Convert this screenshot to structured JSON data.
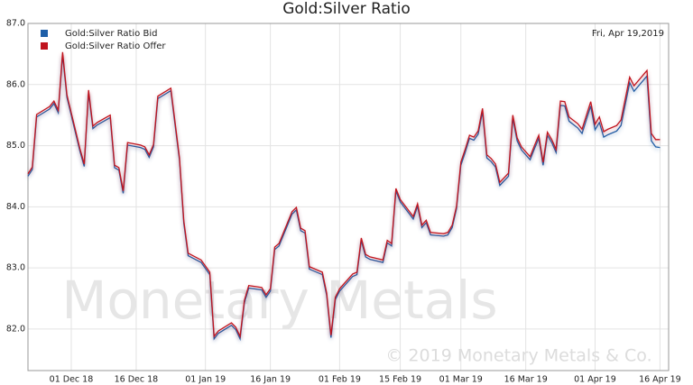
{
  "chart_data": {
    "type": "line",
    "title": "Gold:Silver Ratio",
    "date_label": "Fri, Apr 19,2019",
    "watermark": "Monetary Metals",
    "copyright": "© 2019 Monetary Metals & Co.",
    "x": [
      "2018-11-21",
      "2018-11-22",
      "2018-11-23",
      "2018-11-26",
      "2018-11-27",
      "2018-11-28",
      "2018-11-29",
      "2018-11-30",
      "2018-12-03",
      "2018-12-04",
      "2018-12-05",
      "2018-12-06",
      "2018-12-07",
      "2018-12-10",
      "2018-12-11",
      "2018-12-12",
      "2018-12-13",
      "2018-12-14",
      "2018-12-17",
      "2018-12-18",
      "2018-12-19",
      "2018-12-20",
      "2018-12-21",
      "2018-12-24",
      "2018-12-26",
      "2018-12-27",
      "2018-12-28",
      "2018-12-31",
      "2019-01-02",
      "2019-01-03",
      "2019-01-04",
      "2019-01-07",
      "2019-01-08",
      "2019-01-09",
      "2019-01-10",
      "2019-01-11",
      "2019-01-14",
      "2019-01-15",
      "2019-01-16",
      "2019-01-17",
      "2019-01-18",
      "2019-01-21",
      "2019-01-22",
      "2019-01-23",
      "2019-01-24",
      "2019-01-25",
      "2019-01-28",
      "2019-01-29",
      "2019-01-30",
      "2019-01-31",
      "2019-02-01",
      "2019-02-04",
      "2019-02-05",
      "2019-02-06",
      "2019-02-07",
      "2019-02-08",
      "2019-02-11",
      "2019-02-12",
      "2019-02-13",
      "2019-02-14",
      "2019-02-15",
      "2019-02-18",
      "2019-02-19",
      "2019-02-20",
      "2019-02-21",
      "2019-02-22",
      "2019-02-25",
      "2019-02-26",
      "2019-02-27",
      "2019-02-28",
      "2019-03-01",
      "2019-03-02",
      "2019-03-03",
      "2019-03-04",
      "2019-03-05",
      "2019-03-06",
      "2019-03-07",
      "2019-03-08",
      "2019-03-09",
      "2019-03-10",
      "2019-03-12",
      "2019-03-13",
      "2019-03-14",
      "2019-03-15",
      "2019-03-17",
      "2019-03-18",
      "2019-03-19",
      "2019-03-20",
      "2019-03-21",
      "2019-03-22",
      "2019-03-23",
      "2019-03-24",
      "2019-03-25",
      "2019-03-26",
      "2019-03-28",
      "2019-03-29",
      "2019-03-31",
      "2019-04-01",
      "2019-04-02",
      "2019-04-03",
      "2019-04-04",
      "2019-04-06",
      "2019-04-07",
      "2019-04-09",
      "2019-04-10",
      "2019-04-13",
      "2019-04-14",
      "2019-04-15",
      "2019-04-16"
    ],
    "series": [
      {
        "name": "Gold:Silver Ratio Bid",
        "color": "#1f5fa8",
        "values": [
          84.5,
          84.61,
          85.47,
          85.6,
          85.69,
          85.54,
          86.49,
          85.79,
          84.91,
          84.66,
          85.87,
          85.28,
          85.34,
          85.46,
          84.64,
          84.6,
          84.22,
          85.01,
          84.97,
          84.94,
          84.81,
          84.98,
          85.77,
          85.9,
          84.76,
          83.73,
          83.2,
          83.09,
          82.89,
          81.84,
          81.93,
          82.06,
          81.99,
          81.84,
          82.43,
          82.67,
          82.64,
          82.52,
          82.62,
          83.3,
          83.36,
          83.88,
          83.95,
          83.61,
          83.57,
          82.98,
          82.89,
          82.55,
          81.86,
          82.48,
          82.62,
          82.86,
          82.89,
          83.45,
          83.18,
          83.14,
          83.09,
          83.41,
          83.36,
          84.26,
          84.08,
          83.8,
          84.01,
          83.66,
          83.74,
          83.54,
          83.52,
          83.54,
          83.66,
          83.97,
          84.68,
          84.89,
          85.12,
          85.09,
          85.19,
          85.56,
          84.8,
          84.74,
          84.65,
          84.35,
          84.5,
          85.45,
          85.08,
          84.93,
          84.77,
          84.95,
          85.12,
          84.68,
          85.17,
          85.05,
          84.89,
          85.66,
          85.65,
          85.4,
          85.29,
          85.2,
          85.65,
          85.26,
          85.38,
          85.14,
          85.18,
          85.24,
          85.33,
          86.03,
          85.89,
          86.14,
          85.08,
          84.98,
          84.97
        ]
      },
      {
        "name": "Gold:Silver Ratio Offer",
        "color": "#c0141e",
        "values": [
          84.54,
          84.65,
          85.51,
          85.64,
          85.73,
          85.58,
          86.53,
          85.83,
          84.95,
          84.7,
          85.91,
          85.32,
          85.38,
          85.5,
          84.68,
          84.64,
          84.26,
          85.05,
          85.01,
          84.98,
          84.85,
          85.02,
          85.81,
          85.94,
          84.8,
          83.77,
          83.24,
          83.13,
          82.93,
          81.88,
          81.97,
          82.1,
          82.03,
          81.88,
          82.47,
          82.71,
          82.68,
          82.56,
          82.66,
          83.34,
          83.4,
          83.92,
          83.99,
          83.65,
          83.61,
          83.02,
          82.93,
          82.59,
          81.9,
          82.52,
          82.66,
          82.9,
          82.93,
          83.49,
          83.22,
          83.18,
          83.13,
          83.45,
          83.4,
          84.3,
          84.12,
          83.84,
          84.05,
          83.7,
          83.78,
          83.58,
          83.56,
          83.58,
          83.7,
          84.01,
          84.73,
          84.94,
          85.17,
          85.14,
          85.24,
          85.61,
          84.85,
          84.79,
          84.7,
          84.4,
          84.55,
          85.5,
          85.13,
          84.98,
          84.82,
          85.0,
          85.17,
          84.73,
          85.22,
          85.1,
          84.94,
          85.73,
          85.72,
          85.47,
          85.36,
          85.27,
          85.72,
          85.35,
          85.47,
          85.23,
          85.27,
          85.33,
          85.42,
          86.12,
          85.98,
          86.23,
          85.2,
          85.1,
          85.1
        ]
      }
    ],
    "xlim": [
      "2018-11-21",
      "2019-04-18"
    ],
    "xticks": [
      {
        "value": "2018-12-01",
        "label": "01 Dec 18"
      },
      {
        "value": "2018-12-16",
        "label": "16 Dec 18"
      },
      {
        "value": "2019-01-01",
        "label": "01 Jan 19"
      },
      {
        "value": "2019-01-16",
        "label": "16 Jan 19"
      },
      {
        "value": "2019-02-01",
        "label": "01 Feb 19"
      },
      {
        "value": "2019-02-15",
        "label": "15 Feb 19"
      },
      {
        "value": "2019-03-01",
        "label": "01 Mar 19"
      },
      {
        "value": "2019-03-16",
        "label": "16 Mar 19"
      },
      {
        "value": "2019-04-01",
        "label": "01 Apr 19"
      },
      {
        "value": "2019-04-16",
        "label": "16 Apr 19"
      }
    ],
    "ylim": [
      81.32,
      87.0
    ],
    "yticks": [
      {
        "value": 82,
        "label": "82.0"
      },
      {
        "value": 83,
        "label": "83.0"
      },
      {
        "value": 84,
        "label": "84.0"
      },
      {
        "value": 85,
        "label": "85.0"
      },
      {
        "value": 86,
        "label": "86.0"
      },
      {
        "value": 87,
        "label": "87.0"
      }
    ],
    "grid": true,
    "legend": "top-left"
  }
}
